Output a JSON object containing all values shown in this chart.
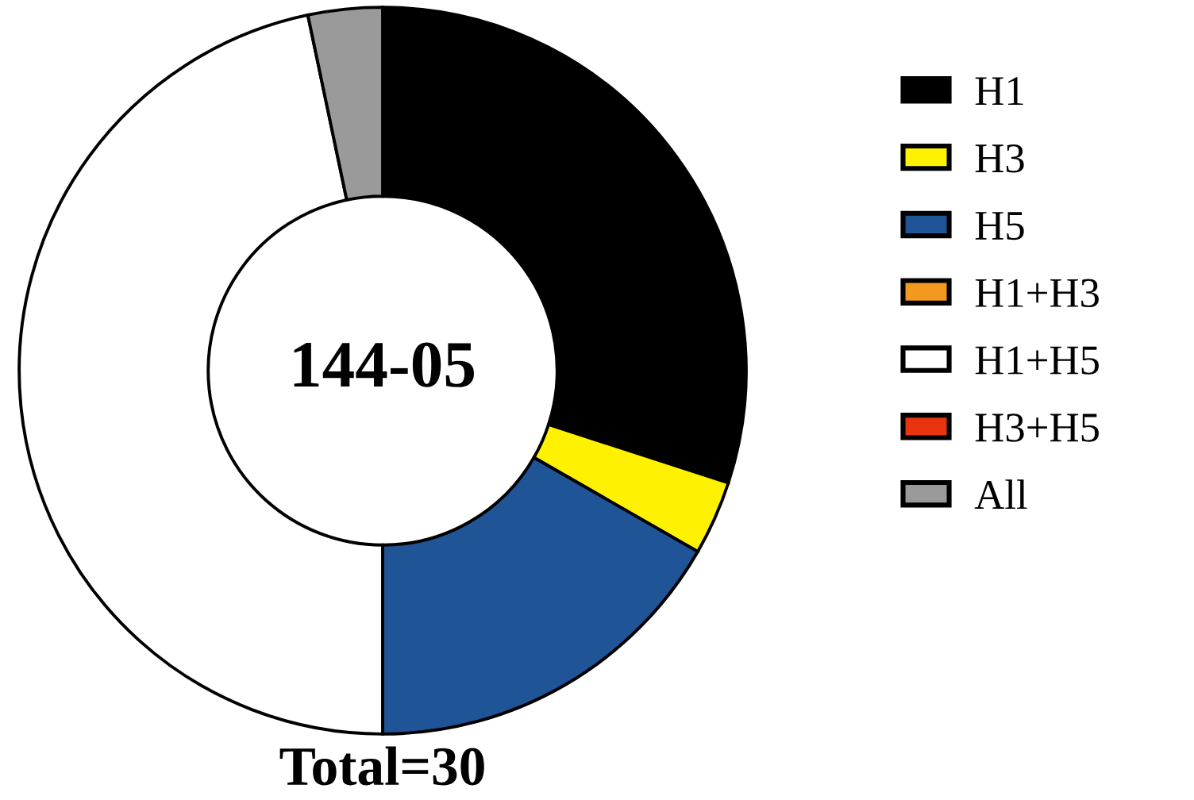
{
  "chart_data": {
    "type": "donut",
    "title": "144-05",
    "categories": [
      "H1",
      "H3",
      "H5",
      "H1+H3",
      "H1+H5",
      "H3+H5",
      "All"
    ],
    "values": [
      30,
      3.3,
      16.7,
      0,
      46.7,
      0,
      3.3
    ],
    "colors": [
      "#000000",
      "#fff200",
      "#1f5497",
      "#f39a1e",
      "#ffffff",
      "#e8350f",
      "#9a9a9a"
    ],
    "legend": "right",
    "annotations": [
      "Total=30"
    ]
  }
}
